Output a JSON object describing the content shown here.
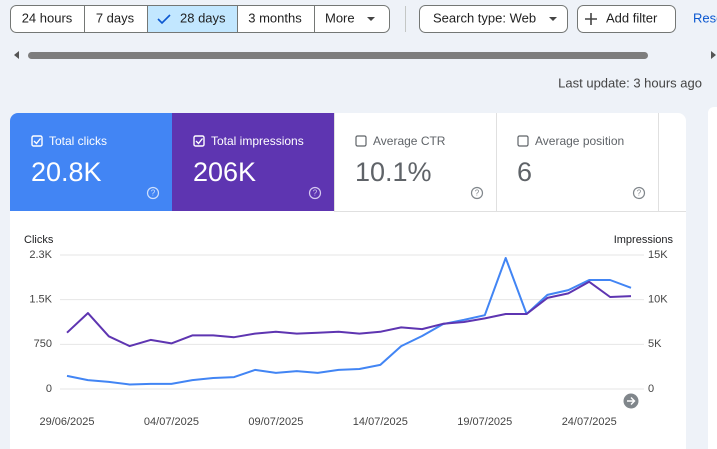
{
  "toolbar": {
    "date_ranges": [
      "24 hours",
      "7 days",
      "28 days",
      "3 months",
      "More"
    ],
    "search_type": "Search type: Web",
    "add_filter": "Add filter",
    "reset": "Reset"
  },
  "last_update": "Last update: 3 hours ago",
  "metrics": [
    {
      "label": "Total clicks",
      "value": "20.8K"
    },
    {
      "label": "Total impressions",
      "value": "206K"
    },
    {
      "label": "Average CTR",
      "value": "10.1%"
    },
    {
      "label": "Average position",
      "value": "6"
    }
  ],
  "chart_data": {
    "type": "line",
    "y_label": "Clicks",
    "y2_label": "Impressions",
    "categories": [
      "29/06/2025",
      null,
      null,
      null,
      null,
      "04/07/2025",
      null,
      null,
      null,
      null,
      "09/07/2025",
      null,
      null,
      null,
      null,
      "14/07/2025",
      null,
      null,
      null,
      null,
      "19/07/2025",
      null,
      null,
      null,
      null,
      "24/07/2025",
      null,
      null
    ],
    "series": [
      {
        "name": "Clicks",
        "color": "#4285f4",
        "values": [
          220,
          150,
          120,
          75,
          85,
          85,
          150,
          185,
          200,
          320,
          270,
          300,
          270,
          320,
          335,
          405,
          720,
          890,
          1090,
          1160,
          1240,
          2200,
          1260,
          1580,
          1660,
          1830,
          1830,
          1700
        ]
      },
      {
        "name": "Impressions",
        "color": "#5e35b1",
        "axis": "y2",
        "values": [
          6300,
          8500,
          5900,
          4800,
          5500,
          5100,
          6000,
          6000,
          5800,
          6200,
          6400,
          6200,
          6300,
          6400,
          6200,
          6400,
          6900,
          6700,
          7300,
          7500,
          7900,
          8400,
          8400,
          10200,
          10700,
          12000,
          10300,
          10400
        ]
      }
    ],
    "ylim": [
      0,
      2250
    ],
    "yticks": [
      0,
      750,
      {
        "value": 1500,
        "label": "1.5K"
      },
      {
        "value": 2250,
        "label": "2.3K"
      }
    ],
    "y2lim": [
      0,
      15000
    ],
    "y2ticks": [
      0,
      {
        "value": 5000,
        "label": "5K"
      },
      {
        "value": 10000,
        "label": "10K"
      },
      {
        "value": 15000,
        "label": "15K"
      }
    ],
    "grid": true
  }
}
